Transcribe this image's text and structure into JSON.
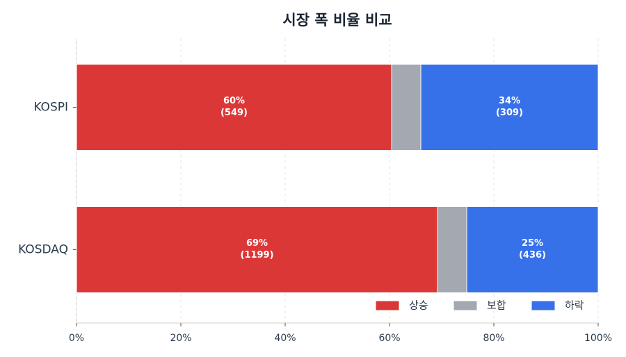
{
  "chart_data": {
    "type": "stacked_barh",
    "title": "시장 폭 비율 비교",
    "categories": [
      "KOSPI",
      "KOSDAQ"
    ],
    "series": [
      {
        "name": "상승",
        "color": "#dc3737",
        "values": [
          60.4,
          69.2
        ],
        "value_labels": [
          "60%",
          "69%"
        ],
        "count_labels": [
          "(549)",
          "(1199)"
        ]
      },
      {
        "name": "보합",
        "color": "#a3a8b1",
        "values": [
          5.6,
          5.6
        ]
      },
      {
        "name": "하락",
        "color": "#3671e9",
        "values": [
          34.0,
          25.2
        ],
        "value_labels": [
          "34%",
          "25%"
        ],
        "count_labels": [
          "(309)",
          "(436)"
        ]
      }
    ],
    "xlim": [
      0,
      100
    ],
    "xticks": [
      {
        "value": 0,
        "label": "0%"
      },
      {
        "value": 20,
        "label": "20%"
      },
      {
        "value": 40,
        "label": "40%"
      },
      {
        "value": 60,
        "label": "60%"
      },
      {
        "value": 80,
        "label": "80%"
      },
      {
        "value": 100,
        "label": "100%"
      }
    ],
    "grid": true,
    "legend": "lower right"
  }
}
